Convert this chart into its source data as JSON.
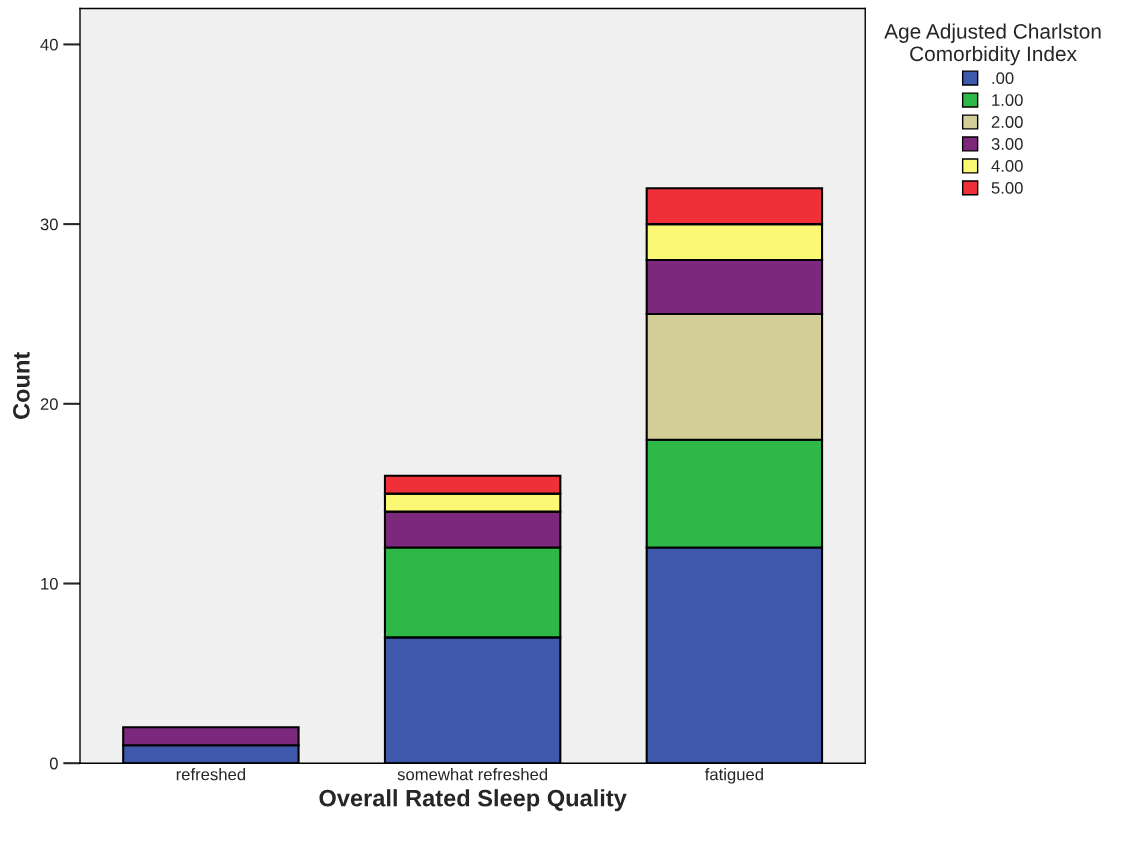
{
  "chart_data": {
    "type": "bar",
    "stacked": true,
    "xlabel": "Overall Rated Sleep Quality",
    "ylabel": "Count",
    "legend_title": "Age Adjusted Charlston\nComorbidity Index",
    "categories": [
      "refreshed",
      "somewhat refreshed",
      "fatigued"
    ],
    "series": [
      {
        "name": ".00",
        "color": "#3e58ac",
        "values": [
          1,
          7,
          12
        ]
      },
      {
        "name": "1.00",
        "color": "#2eb848",
        "values": [
          0,
          5,
          6
        ]
      },
      {
        "name": "2.00",
        "color": "#d3ce97",
        "values": [
          0,
          0,
          7
        ]
      },
      {
        "name": "3.00",
        "color": "#7c287c",
        "values": [
          1,
          2,
          3
        ]
      },
      {
        "name": "4.00",
        "color": "#fbf873",
        "values": [
          0,
          1,
          2
        ]
      },
      {
        "name": "5.00",
        "color": "#ef3038",
        "values": [
          0,
          1,
          2
        ]
      }
    ],
    "ylim": [
      0,
      42
    ],
    "yticks": [
      0,
      10,
      20,
      30,
      40
    ],
    "legend": "top right"
  }
}
